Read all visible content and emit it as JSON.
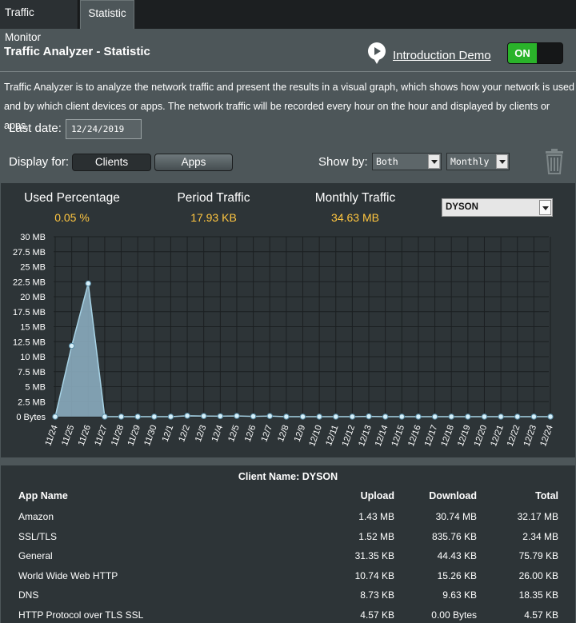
{
  "tabs": [
    "Traffic Monitor",
    "Statistic"
  ],
  "header": {
    "title": "Traffic Analyzer - Statistic",
    "demo_link": "Introduction Demo",
    "toggle": "ON"
  },
  "description": "Traffic Analyzer is to analyze the network traffic and present the results in a visual graph, which shows how your network is used and by which client devices or apps. The network traffic will be recorded every hour on the hour and displayed by clients or apps.",
  "controls": {
    "last_date_label": "Last date:",
    "last_date_value": "12/24/2019",
    "display_for_label": "Display for:",
    "clients_button": "Clients",
    "apps_button": "Apps",
    "show_by_label": "Show by:",
    "show_by_value": "Both",
    "period_value": "Monthly"
  },
  "stats": {
    "used_percentage_label": "Used Percentage",
    "used_percentage_value": "0.05 %",
    "period_traffic_label": "Period Traffic",
    "period_traffic_value": "17.93 KB",
    "monthly_traffic_label": "Monthly Traffic",
    "monthly_traffic_value": "34.63 MB",
    "client_select": "DYSON"
  },
  "chart_data": {
    "type": "area",
    "x": [
      "11/24",
      "11/25",
      "11/26",
      "11/27",
      "11/28",
      "11/29",
      "11/30",
      "12/1",
      "12/2",
      "12/3",
      "12/4",
      "12/5",
      "12/6",
      "12/7",
      "12/8",
      "12/9",
      "12/10",
      "12/11",
      "12/12",
      "12/13",
      "12/14",
      "12/15",
      "12/16",
      "12/17",
      "12/18",
      "12/19",
      "12/20",
      "12/21",
      "12/22",
      "12/23",
      "12/24"
    ],
    "y": [
      0,
      11.8,
      22.2,
      0,
      0,
      0,
      0,
      0,
      0.15,
      0.1,
      0.08,
      0.12,
      0.05,
      0.1,
      0,
      0,
      0,
      0,
      0,
      0.05,
      0,
      0,
      0,
      0,
      0,
      0,
      0,
      0,
      0,
      0,
      0
    ],
    "y_ticks": [
      "0 Bytes",
      "2.5 MB",
      "5 MB",
      "7.5 MB",
      "10 MB",
      "12.5 MB",
      "15 MB",
      "17.5 MB",
      "20 MB",
      "22.5 MB",
      "25 MB",
      "27.5 MB",
      "30 MB"
    ],
    "ylim": [
      0,
      30
    ],
    "unit": "MB",
    "grid": true,
    "colors": {
      "fill": "#8fb3c6",
      "line": "#a7d3e6",
      "point": "#d6f0fa",
      "grid": "#1b1f21"
    }
  },
  "table": {
    "caption": "Client Name: DYSON",
    "headers": [
      "App Name",
      "Upload",
      "Download",
      "Total"
    ],
    "rows": [
      [
        "Amazon",
        "1.43 MB",
        "30.74 MB",
        "32.17 MB"
      ],
      [
        "SSL/TLS",
        "1.52 MB",
        "835.76 KB",
        "2.34 MB"
      ],
      [
        "General",
        "31.35 KB",
        "44.43 KB",
        "75.79 KB"
      ],
      [
        "World Wide Web HTTP",
        "10.74 KB",
        "15.26 KB",
        "26.00 KB"
      ],
      [
        "DNS",
        "8.73 KB",
        "9.63 KB",
        "18.35 KB"
      ],
      [
        "HTTP Protocol over TLS SSL",
        "4.57 KB",
        "0.00 Bytes",
        "4.57 KB"
      ]
    ]
  }
}
